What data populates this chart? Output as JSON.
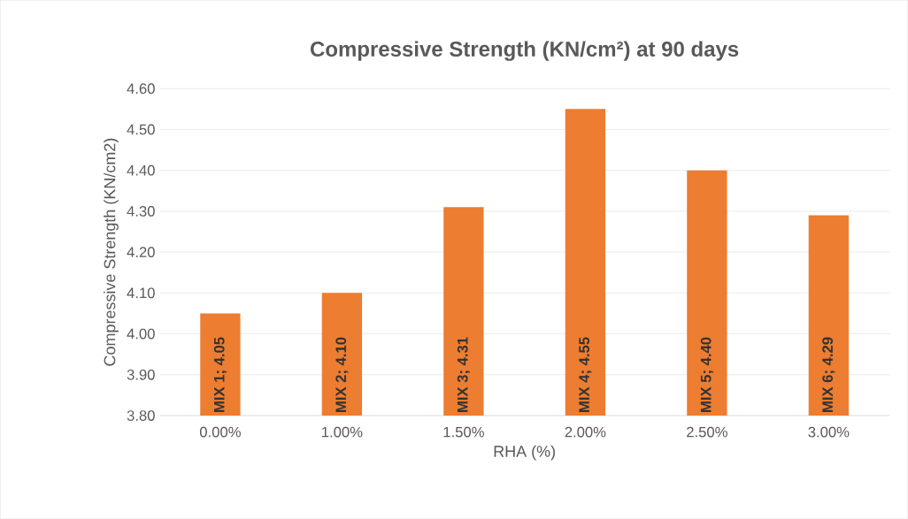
{
  "chart_data": {
    "type": "bar",
    "title": "Compressive Strength (KN/cm²) at 90 days",
    "xlabel": "RHA (%)",
    "ylabel": "Compressive Strength (KN/cm2)",
    "categories": [
      "0.00%",
      "1.00%",
      "1.50%",
      "2.00%",
      "2.50%",
      "3.00%"
    ],
    "values": [
      4.05,
      4.1,
      4.31,
      4.55,
      4.4,
      4.29
    ],
    "value_labels": [
      "MIX 1; 4.05",
      "MIX 2; 4.10",
      "MIX 3; 4.31",
      "MIX 4; 4.55",
      "MIX 5; 4.40",
      "MIX 6; 4.29"
    ],
    "color": "#ed7d31",
    "ylim": [
      3.8,
      4.6
    ],
    "yticks": [
      {
        "value": 3.8,
        "label": "3.80"
      },
      {
        "value": 3.9,
        "label": "3.90"
      },
      {
        "value": 4.0,
        "label": "4.00"
      },
      {
        "value": 4.1,
        "label": "4.10"
      },
      {
        "value": 4.2,
        "label": "4.20"
      },
      {
        "value": 4.3,
        "label": "4.30"
      },
      {
        "value": 4.4,
        "label": "4.40"
      },
      {
        "value": 4.5,
        "label": "4.50"
      },
      {
        "value": 4.6,
        "label": "4.60"
      }
    ],
    "grid": "y"
  }
}
